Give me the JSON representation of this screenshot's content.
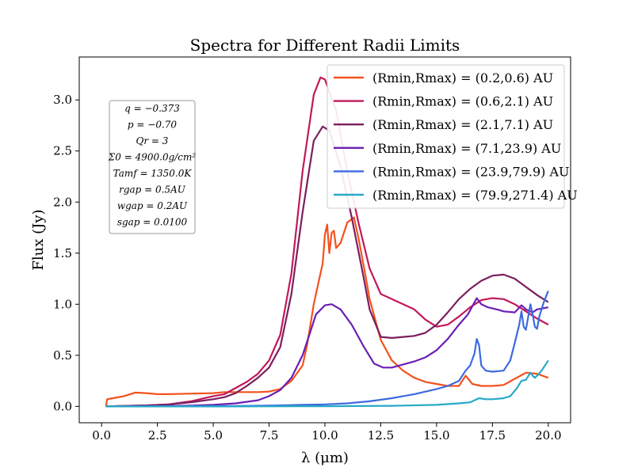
{
  "chart_data": {
    "type": "line",
    "title": "Spectra for Different Radii Limits",
    "xlabel": "λ (μm)",
    "ylabel": "Flux (Jy)",
    "xlim": [
      -1.0,
      21.0
    ],
    "ylim": [
      -0.16,
      3.42
    ],
    "xticks": [
      0.0,
      2.5,
      5.0,
      7.5,
      10.0,
      12.5,
      15.0,
      17.5,
      20.0
    ],
    "xtick_labels": [
      "0.0",
      "2.5",
      "5.0",
      "7.5",
      "10.0",
      "12.5",
      "15.0",
      "17.5",
      "20.0"
    ],
    "yticks": [
      0.0,
      0.5,
      1.0,
      1.5,
      2.0,
      2.5,
      3.0
    ],
    "ytick_labels": [
      "0.0",
      "0.5",
      "1.0",
      "1.5",
      "2.0",
      "2.5",
      "3.0"
    ],
    "grid": false,
    "legend_position": "top-right",
    "parameters": [
      "q = −0.373",
      "p = −0.70",
      "Qr = 3",
      "Σ0 = 4900.0g/cm²",
      "Tamf = 1350.0K",
      "rgap = 0.5AU",
      "wgap = 0.2AU",
      "sgap = 0.0100"
    ],
    "series": [
      {
        "name": "(Rmin,Rmax) = (0.2,0.6) AU",
        "color": "#f4511e",
        "points": [
          [
            0.2,
            0.0
          ],
          [
            0.25,
            0.07
          ],
          [
            0.5,
            0.08
          ],
          [
            1.0,
            0.1
          ],
          [
            1.5,
            0.135
          ],
          [
            2.0,
            0.13
          ],
          [
            2.5,
            0.12
          ],
          [
            3.0,
            0.12
          ],
          [
            4.0,
            0.125
          ],
          [
            5.0,
            0.13
          ],
          [
            5.5,
            0.14
          ],
          [
            6.0,
            0.14
          ],
          [
            7.0,
            0.14
          ],
          [
            7.5,
            0.145
          ],
          [
            8.0,
            0.17
          ],
          [
            8.5,
            0.25
          ],
          [
            9.0,
            0.4
          ],
          [
            9.2,
            0.6
          ],
          [
            9.5,
            1.0
          ],
          [
            9.7,
            1.2
          ],
          [
            9.9,
            1.4
          ],
          [
            10.0,
            1.68
          ],
          [
            10.1,
            1.78
          ],
          [
            10.2,
            1.5
          ],
          [
            10.3,
            1.7
          ],
          [
            10.4,
            1.72
          ],
          [
            10.5,
            1.55
          ],
          [
            10.7,
            1.6
          ],
          [
            11.0,
            1.8
          ],
          [
            11.3,
            1.85
          ],
          [
            11.5,
            1.65
          ],
          [
            11.8,
            1.3
          ],
          [
            12.0,
            1.05
          ],
          [
            12.5,
            0.65
          ],
          [
            13.0,
            0.45
          ],
          [
            13.5,
            0.35
          ],
          [
            14.0,
            0.28
          ],
          [
            14.5,
            0.24
          ],
          [
            15.0,
            0.22
          ],
          [
            15.5,
            0.2
          ],
          [
            16.0,
            0.2
          ],
          [
            16.3,
            0.3
          ],
          [
            16.6,
            0.22
          ],
          [
            17.0,
            0.2
          ],
          [
            17.5,
            0.2
          ],
          [
            18.0,
            0.21
          ],
          [
            18.5,
            0.27
          ],
          [
            19.0,
            0.33
          ],
          [
            19.5,
            0.32
          ],
          [
            20.0,
            0.28
          ]
        ]
      },
      {
        "name": "(Rmin,Rmax) = (0.6,2.1) AU",
        "color": "#c2185b",
        "points": [
          [
            0.2,
            0.0
          ],
          [
            1.0,
            0.005
          ],
          [
            2.0,
            0.01
          ],
          [
            3.0,
            0.02
          ],
          [
            4.0,
            0.05
          ],
          [
            5.0,
            0.1
          ],
          [
            5.5,
            0.12
          ],
          [
            6.0,
            0.18
          ],
          [
            6.5,
            0.24
          ],
          [
            7.0,
            0.32
          ],
          [
            7.5,
            0.45
          ],
          [
            8.0,
            0.7
          ],
          [
            8.5,
            1.3
          ],
          [
            9.0,
            2.3
          ],
          [
            9.5,
            3.05
          ],
          [
            9.8,
            3.22
          ],
          [
            10.0,
            3.2
          ],
          [
            10.5,
            2.9
          ],
          [
            11.0,
            2.3
          ],
          [
            11.5,
            1.8
          ],
          [
            12.0,
            1.35
          ],
          [
            12.5,
            1.1
          ],
          [
            13.0,
            1.05
          ],
          [
            13.5,
            1.0
          ],
          [
            14.0,
            0.95
          ],
          [
            14.5,
            0.85
          ],
          [
            15.0,
            0.78
          ],
          [
            15.5,
            0.8
          ],
          [
            16.0,
            0.88
          ],
          [
            16.5,
            0.97
          ],
          [
            17.0,
            1.04
          ],
          [
            17.5,
            1.06
          ],
          [
            18.0,
            1.05
          ],
          [
            18.5,
            1.0
          ],
          [
            19.0,
            0.93
          ],
          [
            19.5,
            0.86
          ],
          [
            20.0,
            0.8
          ]
        ]
      },
      {
        "name": "(Rmin,Rmax) = (2.1,7.1) AU",
        "color": "#7b1f5e",
        "points": [
          [
            0.2,
            0.0
          ],
          [
            1.0,
            0.005
          ],
          [
            2.0,
            0.01
          ],
          [
            3.0,
            0.02
          ],
          [
            4.0,
            0.04
          ],
          [
            5.0,
            0.07
          ],
          [
            5.5,
            0.09
          ],
          [
            6.0,
            0.13
          ],
          [
            6.5,
            0.2
          ],
          [
            7.0,
            0.28
          ],
          [
            7.5,
            0.38
          ],
          [
            8.0,
            0.58
          ],
          [
            8.5,
            1.1
          ],
          [
            9.0,
            1.9
          ],
          [
            9.5,
            2.6
          ],
          [
            9.9,
            2.74
          ],
          [
            10.2,
            2.7
          ],
          [
            10.7,
            2.35
          ],
          [
            11.2,
            1.85
          ],
          [
            11.7,
            1.3
          ],
          [
            12.0,
            0.95
          ],
          [
            12.5,
            0.68
          ],
          [
            13.0,
            0.67
          ],
          [
            13.5,
            0.68
          ],
          [
            14.0,
            0.69
          ],
          [
            14.5,
            0.72
          ],
          [
            15.0,
            0.8
          ],
          [
            15.5,
            0.92
          ],
          [
            16.0,
            1.05
          ],
          [
            16.5,
            1.15
          ],
          [
            17.0,
            1.23
          ],
          [
            17.5,
            1.28
          ],
          [
            18.0,
            1.29
          ],
          [
            18.5,
            1.25
          ],
          [
            19.0,
            1.17
          ],
          [
            19.5,
            1.09
          ],
          [
            20.0,
            1.02
          ]
        ]
      },
      {
        "name": "(Rmin,Rmax) = (7.1,23.9) AU",
        "color": "#6a1fb3",
        "points": [
          [
            0.2,
            0.0
          ],
          [
            2.0,
            0.003
          ],
          [
            4.0,
            0.008
          ],
          [
            5.0,
            0.015
          ],
          [
            6.0,
            0.03
          ],
          [
            7.0,
            0.06
          ],
          [
            7.5,
            0.1
          ],
          [
            8.0,
            0.16
          ],
          [
            8.5,
            0.28
          ],
          [
            9.0,
            0.5
          ],
          [
            9.3,
            0.7
          ],
          [
            9.6,
            0.9
          ],
          [
            10.0,
            0.99
          ],
          [
            10.3,
            1.0
          ],
          [
            10.7,
            0.95
          ],
          [
            11.2,
            0.8
          ],
          [
            11.7,
            0.6
          ],
          [
            12.2,
            0.42
          ],
          [
            12.6,
            0.38
          ],
          [
            13.0,
            0.38
          ],
          [
            13.5,
            0.41
          ],
          [
            14.0,
            0.44
          ],
          [
            14.5,
            0.48
          ],
          [
            15.0,
            0.55
          ],
          [
            15.5,
            0.66
          ],
          [
            16.0,
            0.8
          ],
          [
            16.4,
            0.9
          ],
          [
            16.6,
            0.98
          ],
          [
            16.8,
            1.06
          ],
          [
            17.0,
            1.0
          ],
          [
            17.3,
            0.97
          ],
          [
            17.7,
            0.95
          ],
          [
            18.0,
            0.93
          ],
          [
            18.5,
            0.92
          ],
          [
            18.8,
            0.99
          ],
          [
            19.0,
            0.95
          ],
          [
            19.3,
            0.92
          ],
          [
            19.5,
            0.95
          ],
          [
            20.0,
            0.97
          ]
        ]
      },
      {
        "name": "(Rmin,Rmax) = (23.9,79.9) AU",
        "color": "#3c6ae0",
        "points": [
          [
            0.2,
            0.0
          ],
          [
            4.0,
            0.002
          ],
          [
            6.0,
            0.004
          ],
          [
            8.0,
            0.01
          ],
          [
            9.0,
            0.015
          ],
          [
            10.0,
            0.02
          ],
          [
            11.0,
            0.03
          ],
          [
            12.0,
            0.05
          ],
          [
            13.0,
            0.08
          ],
          [
            14.0,
            0.12
          ],
          [
            15.0,
            0.17
          ],
          [
            15.5,
            0.2
          ],
          [
            16.0,
            0.25
          ],
          [
            16.3,
            0.35
          ],
          [
            16.5,
            0.4
          ],
          [
            16.7,
            0.52
          ],
          [
            16.8,
            0.66
          ],
          [
            16.9,
            0.6
          ],
          [
            17.0,
            0.4
          ],
          [
            17.2,
            0.35
          ],
          [
            17.5,
            0.34
          ],
          [
            18.0,
            0.35
          ],
          [
            18.3,
            0.45
          ],
          [
            18.5,
            0.62
          ],
          [
            18.7,
            0.8
          ],
          [
            18.8,
            0.93
          ],
          [
            18.9,
            0.78
          ],
          [
            19.0,
            0.75
          ],
          [
            19.2,
            1.0
          ],
          [
            19.3,
            0.9
          ],
          [
            19.4,
            0.78
          ],
          [
            19.5,
            0.76
          ],
          [
            19.6,
            0.88
          ],
          [
            19.8,
            1.02
          ],
          [
            20.0,
            1.13
          ]
        ]
      },
      {
        "name": "(Rmin,Rmax) = (79.9,271.4) AU",
        "color": "#26a9c7",
        "points": [
          [
            0.2,
            0.0
          ],
          [
            5.0,
            0.0
          ],
          [
            10.0,
            0.002
          ],
          [
            13.0,
            0.006
          ],
          [
            15.0,
            0.015
          ],
          [
            16.0,
            0.03
          ],
          [
            16.5,
            0.04
          ],
          [
            16.7,
            0.06
          ],
          [
            16.9,
            0.08
          ],
          [
            17.2,
            0.07
          ],
          [
            17.5,
            0.07
          ],
          [
            18.0,
            0.08
          ],
          [
            18.3,
            0.1
          ],
          [
            18.6,
            0.18
          ],
          [
            18.8,
            0.25
          ],
          [
            19.0,
            0.26
          ],
          [
            19.2,
            0.33
          ],
          [
            19.3,
            0.3
          ],
          [
            19.4,
            0.28
          ],
          [
            19.5,
            0.3
          ],
          [
            19.7,
            0.35
          ],
          [
            20.0,
            0.45
          ]
        ]
      }
    ]
  }
}
